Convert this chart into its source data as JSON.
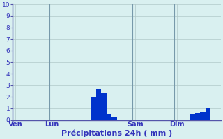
{
  "title": "",
  "xlabel": "Précipitations 24h ( mm )",
  "ylabel": "",
  "bg_color": "#d9f0f0",
  "bar_color": "#0033cc",
  "grid_color": "#b0c8c8",
  "axis_color": "#5555aa",
  "tick_label_color": "#3333bb",
  "xlabel_color": "#3333bb",
  "ylim": [
    0,
    10
  ],
  "yticks": [
    0,
    1,
    2,
    3,
    4,
    5,
    6,
    7,
    8,
    9,
    10
  ],
  "n_bars": 40,
  "day_labels": [
    "Ven",
    "Lun",
    "Sam",
    "Dim"
  ],
  "day_label_bar_indices": [
    0,
    7,
    23,
    31
  ],
  "day_vline_bar_indices": [
    0,
    7,
    23,
    31
  ],
  "bars": [
    0,
    0,
    0,
    0,
    0,
    0,
    0,
    0,
    0,
    0,
    0,
    0,
    0,
    0,
    0,
    2.0,
    2.7,
    2.3,
    0.5,
    0.3,
    0,
    0,
    0,
    0,
    0,
    0,
    0,
    0,
    0,
    0,
    0,
    0,
    0,
    0,
    0.5,
    0.6,
    0.7,
    1.0,
    0,
    0
  ]
}
